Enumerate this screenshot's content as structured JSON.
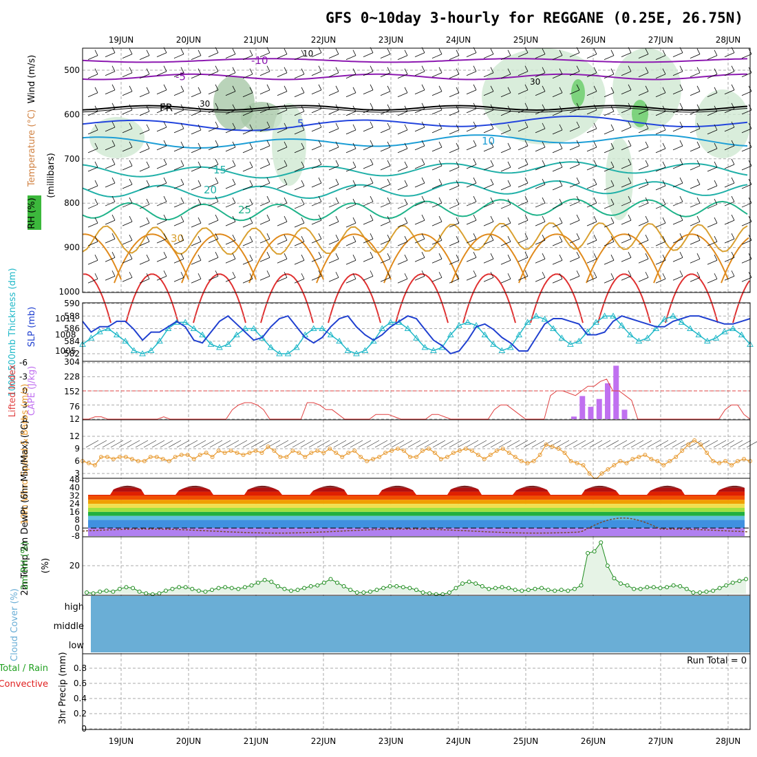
{
  "title": "GFS 0~10day 3-hourly for REGGANE (0.25E, 26.75N)",
  "colors": {
    "temp_lines": [
      "#e03030",
      "#e08a1c",
      "#d9a030",
      "#1fb38a",
      "#20b0a8",
      "#1c9ed6",
      "#2244dd",
      "#8c18b0"
    ],
    "rh_fill": "#cfe8d2",
    "cape": "#c070f0",
    "lifted": "#e04040",
    "slp": "#2040d0",
    "thickness": "#20b8c8",
    "wind10": "#e89a30",
    "rh2m": "#1a8a1a",
    "cloud": "#6aaed6",
    "dewpt": "#7a4a2a"
  },
  "chart_data": {
    "type": "meteogram",
    "title": "GFS 0~10day 3-hourly for REGGANE (0.25E, 26.75N)",
    "x_labels": [
      "19JUN",
      "20JUN",
      "21JUN",
      "22JUN",
      "23JUN",
      "24JUN",
      "25JUN",
      "26JUN",
      "27JUN",
      "28JUN"
    ],
    "panels": {
      "upper_air": {
        "ylabels": [
          "Wind (m/s)",
          "Temperature (°C)",
          "RH (%)"
        ],
        "axis_label": "(millibars)",
        "yticks": [
          "500",
          "600",
          "700",
          "800",
          "900",
          "1000"
        ],
        "contour_labels": [
          "-10",
          "-5",
          "FR",
          "5",
          "10",
          "15",
          "20",
          "25",
          "30"
        ],
        "rh_labels": [
          "10",
          "30"
        ]
      },
      "pressure": {
        "ylabel_left": "1000-500mb Thickness (dm)",
        "ylabel_right": "SLP (mb)",
        "yticks_left": [
          "590",
          "588",
          "586",
          "584",
          "582"
        ],
        "yticks_right": [
          "1011",
          "1008",
          "1005"
        ],
        "slp": [
          1010.5,
          1008.5,
          1009.5,
          1009.5,
          1010.5,
          1010.5,
          1009,
          1007,
          1008.5,
          1008.5,
          1009.5,
          1010.5,
          1009.5,
          1007,
          1006.5,
          1008.5,
          1010.5,
          1011.5,
          1010,
          1008.5,
          1007,
          1007.5,
          1009.5,
          1011,
          1011.5,
          1009.5,
          1007.5,
          1006.5,
          1007.5,
          1009.5,
          1011,
          1011.5,
          1009.5,
          1008,
          1007,
          1008,
          1009.5,
          1010.5,
          1011.5,
          1011,
          1009,
          1007,
          1006,
          1004.5,
          1005,
          1007,
          1009.5,
          1010,
          1009,
          1007.5,
          1006.5,
          1005,
          1005,
          1007.5,
          1010,
          1011,
          1011,
          1010.5,
          1010,
          1008,
          1008,
          1008.5,
          1010.5,
          1011.5,
          1011,
          1010.5,
          1010,
          1009.5,
          1009.5,
          1010.5,
          1011,
          1011.5,
          1011.5,
          1011,
          1010.5,
          1010,
          1010,
          1010.5,
          1011
        ],
        "thickness": [
          583.5,
          584.5,
          585.5,
          586,
          585,
          584,
          582.5,
          582,
          582.5,
          584,
          586,
          587,
          587,
          586,
          585,
          583.5,
          583,
          583.5,
          585,
          586,
          586,
          584.5,
          583,
          582,
          582,
          583,
          585,
          586,
          586,
          585,
          584,
          582.5,
          582,
          582.5,
          584,
          586,
          587,
          587,
          586,
          584.5,
          583,
          582.5,
          583,
          585,
          586.5,
          587,
          586.5,
          585,
          583.5,
          582.5,
          583,
          585,
          587,
          588,
          587.5,
          586,
          584.5,
          583.5,
          584,
          585.5,
          587,
          588,
          588,
          586.5,
          585,
          584,
          584.5,
          586,
          587.5,
          588,
          587,
          586,
          585,
          584,
          584.5,
          585.5,
          586,
          585,
          583.5
        ]
      },
      "instability": {
        "ylabel_left": "Lifted Index",
        "ylabel_right": "CAPE (J/kg)",
        "yticks_left": [
          "-6",
          "-3",
          "0",
          "3",
          "6"
        ],
        "yticks_right": [
          "304",
          "228",
          "152",
          "76",
          "12"
        ],
        "lifted_index": [
          6,
          6,
          5.5,
          5.5,
          6,
          6,
          6,
          6,
          6,
          6,
          6,
          6,
          6,
          5.5,
          6,
          6,
          6,
          6,
          6,
          6,
          6,
          6,
          6,
          6,
          4,
          3,
          2.5,
          2.5,
          3,
          4,
          6,
          6,
          6,
          6,
          6,
          6,
          2.5,
          2.5,
          3,
          4,
          4,
          5,
          6,
          6,
          6,
          6,
          6,
          5,
          5,
          5,
          5.5,
          6,
          6,
          6,
          6,
          6,
          5,
          5,
          5.5,
          6,
          6,
          6,
          6,
          6,
          6,
          6,
          4,
          3,
          3,
          4,
          5,
          6,
          6,
          6,
          6,
          1,
          0,
          0,
          0.5,
          1,
          0,
          -1,
          -1,
          -2,
          -2.5,
          0,
          0,
          1,
          2,
          6,
          6,
          6,
          6,
          6,
          6,
          6,
          6,
          6,
          6,
          6,
          6,
          6,
          6,
          4,
          3,
          3,
          5,
          6
        ],
        "cape_bars": [
          {
            "x": "25JUN 18Z",
            "value": 25
          },
          {
            "x": "26JUN 00Z",
            "value": 130
          },
          {
            "x": "26JUN 03Z",
            "value": 75
          },
          {
            "x": "26JUN 06Z",
            "value": 115
          },
          {
            "x": "26JUN 09Z",
            "value": 195
          },
          {
            "x": "26JUN 12Z",
            "value": 285
          },
          {
            "x": "26JUN 15Z",
            "value": 60
          }
        ]
      },
      "wind10m": {
        "ylabel": "10m Wind Speed & Barbs (m/s)",
        "yticks": [
          "12",
          "9",
          "6",
          "3"
        ],
        "speed": [
          6,
          5.5,
          5,
          7,
          7,
          6.5,
          7,
          7,
          6.5,
          6,
          6,
          7,
          7,
          6.5,
          6,
          7,
          7.5,
          7.5,
          6.5,
          7.5,
          8,
          7,
          8.5,
          8,
          8.5,
          8,
          7.5,
          8,
          8.5,
          8,
          9.5,
          8.5,
          7,
          7,
          8.5,
          8,
          7,
          8,
          8.5,
          8,
          9,
          8,
          7,
          8,
          8.5,
          7,
          6,
          6.5,
          7,
          8,
          8.5,
          9,
          8.5,
          7,
          7,
          8.5,
          9,
          8,
          6.5,
          7,
          8,
          8.5,
          9,
          8.5,
          7.5,
          6.5,
          7.5,
          8.5,
          9,
          8,
          7,
          6,
          5.5,
          6,
          7.5,
          10,
          9.5,
          9,
          8,
          6,
          5.5,
          5,
          3,
          1.5,
          3,
          4,
          5,
          6,
          5.5,
          6.5,
          7,
          7.5,
          6.5,
          6,
          5,
          6,
          7,
          8.5,
          10,
          11,
          10,
          8,
          6,
          5.5,
          6,
          5,
          6,
          6.5,
          6
        ]
      },
      "temp2m": {
        "ylabel": "2m Temp 2m DewPt (6hr Min/Max) (°C)",
        "yticks": [
          "48",
          "40",
          "32",
          "24",
          "16",
          "8",
          "0",
          "-8"
        ],
        "max": [
          42,
          41.5,
          43,
          42.5,
          43,
          42.5,
          43,
          42,
          43
        ],
        "min": [
          33,
          33,
          32.5,
          32,
          33.5,
          33.5,
          33,
          33.5,
          32,
          34
        ]
      },
      "rh2m": {
        "ylabel": "2m RH (%)",
        "yticks": [
          "20"
        ],
        "values": [
          5,
          4.5,
          5.5,
          6,
          5.5,
          7,
          8,
          7.5,
          5.5,
          4.5,
          4,
          4.5,
          6,
          7,
          8,
          8,
          7,
          6,
          5.5,
          6.5,
          7.5,
          8,
          7.5,
          7,
          8,
          9,
          10.5,
          12,
          11,
          8.5,
          7,
          6,
          6.5,
          7.5,
          8.5,
          9,
          10.5,
          12.5,
          10.5,
          8.5,
          6.5,
          5,
          5,
          5.5,
          6.5,
          7.5,
          8.5,
          8.5,
          8,
          7.5,
          6.5,
          5,
          4.5,
          4,
          4,
          5,
          7.5,
          10,
          11,
          10,
          8.5,
          7,
          7.5,
          8,
          7.5,
          6.5,
          6,
          6.5,
          7,
          7.5,
          6.5,
          6,
          6.5,
          6,
          7,
          9,
          27,
          28,
          33,
          20,
          13,
          10,
          9,
          7,
          7,
          8,
          8,
          7.5,
          8,
          9,
          8.5,
          7,
          5,
          5,
          5.5,
          6,
          7.5,
          9,
          10.5,
          11.5,
          12.5
        ]
      },
      "cloud": {
        "ylabel": "Cloud Cover (%)",
        "levels": [
          "high",
          "middle",
          "low"
        ]
      },
      "precip": {
        "ylabel_left": "Total / Rain Convective",
        "ylabel": "3hr Precip (mm)",
        "yticks": [
          "0.8",
          "0.6",
          "0.4",
          "0.2",
          "0"
        ],
        "run_total": "Run Total = 0"
      }
    }
  }
}
